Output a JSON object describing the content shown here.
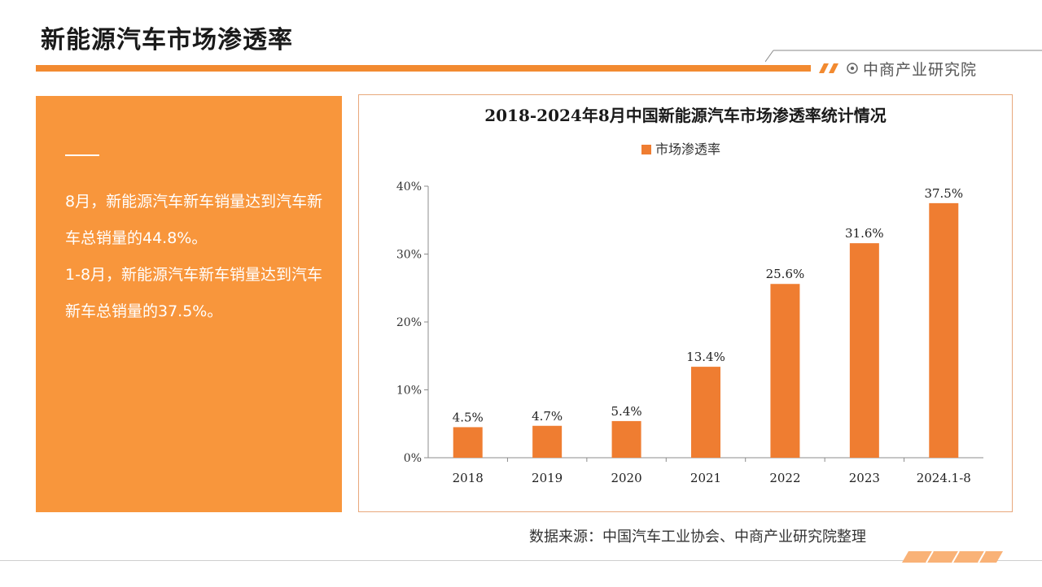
{
  "header": {
    "title": "新能源汽车市场渗透率",
    "brand": "中商产业研究院"
  },
  "side_panel": {
    "paragraphs": [
      "8月，新能源汽车新车销量达到汽车新车总销量的44.8%。",
      "1-8月，新能源汽车新车销量达到汽车新车总销量的37.5%。"
    ]
  },
  "footer": {
    "source": "数据来源：中国汽车工业协会、中商产业研究院整理"
  },
  "colors": {
    "accent": "#f28a30",
    "panel": "#f8963c",
    "bar": "#ef7d31",
    "axis": "#8c8c8c"
  },
  "chart_data": {
    "type": "bar",
    "title": "2018-2024年8月中国新能源汽车市场渗透率统计情况",
    "categories": [
      "2018",
      "2019",
      "2020",
      "2021",
      "2022",
      "2023",
      "2024.1-8"
    ],
    "series": [
      {
        "name": "市场渗透率",
        "values": [
          4.5,
          4.7,
          5.4,
          13.4,
          25.6,
          31.6,
          37.5
        ]
      }
    ],
    "data_labels": [
      "4.5%",
      "4.7%",
      "5.4%",
      "13.4%",
      "25.6%",
      "31.6%",
      "37.5%"
    ],
    "yticks": [
      "0%",
      "10%",
      "20%",
      "30%",
      "40%"
    ],
    "ylim": [
      0,
      40
    ],
    "legend_position": "top-center",
    "grid": false
  }
}
